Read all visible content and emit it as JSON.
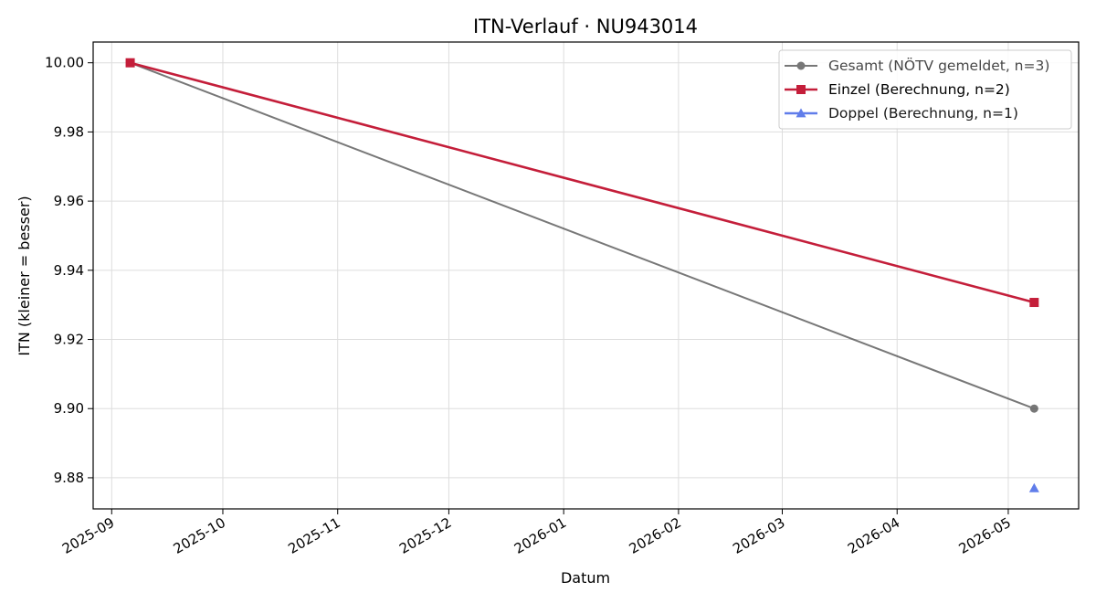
{
  "chart_data": {
    "type": "line",
    "title": "ITN-Verlauf · NU943014",
    "xlabel": "Datum",
    "ylabel": "ITN  (kleiner = besser)",
    "x_axis": {
      "kind": "date",
      "range": [
        "2025-08-27",
        "2026-05-20"
      ],
      "ticks": [
        "2025-09-01",
        "2025-10-01",
        "2025-11-01",
        "2025-12-01",
        "2026-01-01",
        "2026-02-01",
        "2026-03-01",
        "2026-04-01",
        "2026-05-01"
      ],
      "tick_labels": [
        "2025-09",
        "2025-10",
        "2025-11",
        "2025-12",
        "2026-01",
        "2026-02",
        "2026-03",
        "2026-04",
        "2026-05"
      ]
    },
    "y_axis": {
      "range": [
        9.871,
        10.006
      ],
      "ticks": [
        9.88,
        9.9,
        9.92,
        9.94,
        9.96,
        9.98,
        10.0
      ],
      "tick_labels": [
        "9.88",
        "9.90",
        "9.92",
        "9.94",
        "9.96",
        "9.98",
        "10.00"
      ]
    },
    "grid": true,
    "legend_position": "top-right",
    "series": [
      {
        "name": "Gesamt (NÖTV gemeldet, n=3)",
        "color": "#444444",
        "marker": "circle",
        "points": [
          {
            "x": "2025-09-06",
            "y": 10.0
          },
          {
            "x": "2026-05-08",
            "y": 9.9
          }
        ]
      },
      {
        "name": "Einzel (Berechnung, n=2)",
        "color": "#c41e3a",
        "marker": "square",
        "points": [
          {
            "x": "2025-09-06",
            "y": 10.0
          },
          {
            "x": "2026-05-08",
            "y": 9.9307
          }
        ]
      },
      {
        "name": "Doppel (Berechnung, n=1)",
        "color": "#4f6fe8",
        "marker": "triangle",
        "points": [
          {
            "x": "2026-05-08",
            "y": 9.877
          }
        ]
      }
    ]
  }
}
